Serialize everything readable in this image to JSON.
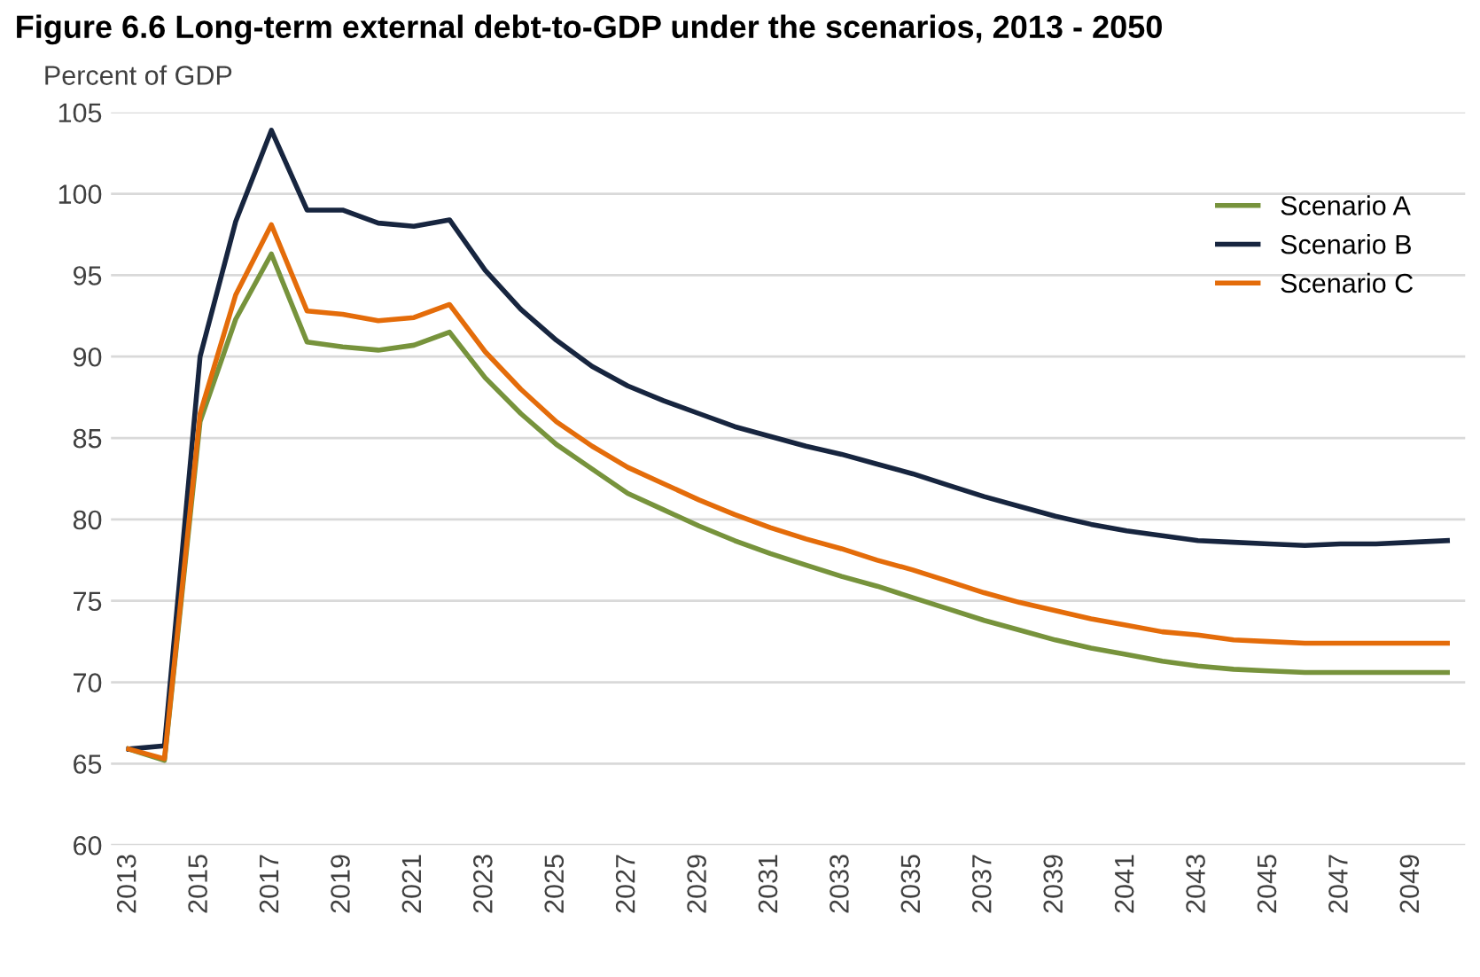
{
  "chart_data": {
    "type": "line",
    "title": "Figure 6.6 Long-term external debt-to-GDP under the scenarios, 2013 - 2050",
    "ylabel": "Percent of GDP",
    "categories": [
      "2013",
      null,
      "2015",
      null,
      "2017",
      null,
      "2019",
      null,
      "2021",
      null,
      "2023",
      null,
      "2025",
      null,
      "2027",
      null,
      "2029",
      null,
      "2031",
      null,
      "2033",
      null,
      "2035",
      null,
      "2037",
      null,
      "2039",
      null,
      "2041",
      null,
      "2043",
      null,
      "2045",
      null,
      "2047",
      null,
      "2049",
      null
    ],
    "series": [
      {
        "name": "Scenario A",
        "color": "#77933c",
        "values": [
          65.9,
          65.2,
          86.0,
          92.3,
          96.3,
          90.9,
          90.6,
          90.4,
          90.7,
          91.5,
          88.7,
          86.5,
          84.6,
          83.1,
          81.6,
          80.6,
          79.6,
          78.7,
          77.9,
          77.2,
          76.5,
          75.9,
          75.2,
          74.5,
          73.8,
          73.2,
          72.6,
          72.1,
          71.7,
          71.3,
          71.0,
          70.8,
          70.7,
          70.6,
          70.6,
          70.6,
          70.6,
          70.6
        ]
      },
      {
        "name": "Scenario B",
        "color": "#17253f",
        "values": [
          65.9,
          66.1,
          90.0,
          98.3,
          103.9,
          99.0,
          99.0,
          98.2,
          98.0,
          98.4,
          95.3,
          92.9,
          91.0,
          89.4,
          88.2,
          87.3,
          86.5,
          85.7,
          85.1,
          84.5,
          84.0,
          83.4,
          82.8,
          82.1,
          81.4,
          80.8,
          80.2,
          79.7,
          79.3,
          79.0,
          78.7,
          78.6,
          78.5,
          78.4,
          78.5,
          78.5,
          78.6,
          78.7
        ]
      },
      {
        "name": "Scenario C",
        "color": "#e46c0a",
        "values": [
          65.9,
          65.3,
          86.5,
          93.8,
          98.1,
          92.8,
          92.6,
          92.2,
          92.4,
          93.2,
          90.3,
          88.0,
          86.0,
          84.5,
          83.2,
          82.2,
          81.2,
          80.3,
          79.5,
          78.8,
          78.2,
          77.5,
          76.9,
          76.2,
          75.5,
          74.9,
          74.4,
          73.9,
          73.5,
          73.1,
          72.9,
          72.6,
          72.5,
          72.4,
          72.4,
          72.4,
          72.4,
          72.4
        ]
      }
    ],
    "ylim": [
      60,
      105
    ],
    "yticks": [
      60,
      65,
      70,
      75,
      80,
      85,
      90,
      95,
      100,
      105
    ],
    "grid": "y",
    "legend": "top right"
  }
}
